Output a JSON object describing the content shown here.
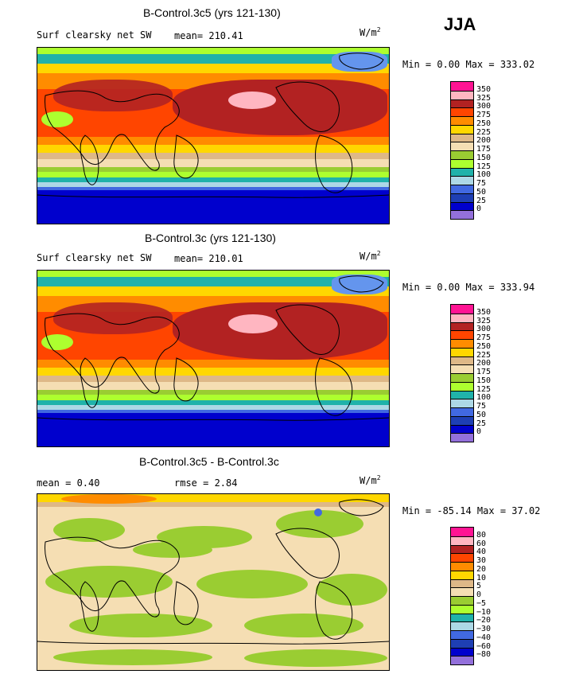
{
  "season": "JJA",
  "panels": [
    {
      "title": "B-Control.3c5 (yrs 121-130)",
      "left_label": "Surf clearsky net SW",
      "mid_label": "mean= 210.41",
      "unit": "W/m",
      "unit_sup": "2",
      "minmax": "Min =   0.00 Max = 333.02",
      "colorbar_labels": [
        "350",
        "325",
        "300",
        "275",
        "250",
        "225",
        "200",
        "175",
        "150",
        "125",
        "100",
        "75",
        "50",
        "25",
        "0"
      ]
    },
    {
      "title": "B-Control.3c (yrs 121-130)",
      "left_label": "Surf clearsky net SW",
      "mid_label": "mean= 210.01",
      "unit": "W/m",
      "unit_sup": "2",
      "minmax": "Min =   0.00 Max = 333.94",
      "colorbar_labels": [
        "350",
        "325",
        "300",
        "275",
        "250",
        "225",
        "200",
        "175",
        "150",
        "125",
        "100",
        "75",
        "50",
        "25",
        "0"
      ]
    },
    {
      "title": "B-Control.3c5 - B-Control.3c",
      "left_label": "mean =   0.40",
      "mid_label": "rmse =   2.84",
      "unit": "W/m",
      "unit_sup": "2",
      "minmax": "Min = -85.14 Max =  37.02",
      "colorbar_labels": [
        "80",
        "60",
        "40",
        "30",
        "20",
        "10",
        "5",
        "0",
        "−5",
        "−10",
        "−20",
        "−30",
        "−40",
        "−60",
        "−80"
      ]
    }
  ],
  "palette": [
    "#ff1493",
    "#ffb6c1",
    "#b22222",
    "#ff4500",
    "#ff8c00",
    "#ffd700",
    "#deb887",
    "#f5deb3",
    "#9acd32",
    "#adff2f",
    "#20b2aa",
    "#add8e6",
    "#4169e1",
    "#1e3fb4",
    "#0000cd",
    "#9370db"
  ]
}
